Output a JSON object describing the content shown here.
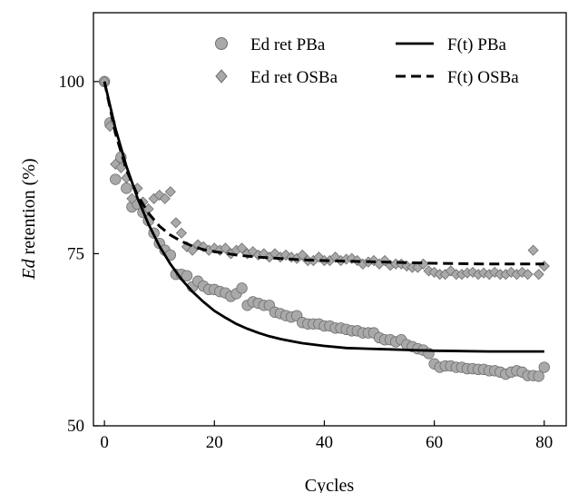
{
  "chart_data": {
    "type": "scatter",
    "title": "",
    "xlabel": "Cycles",
    "ylabel_italic": "Ed",
    "ylabel_rest": " retention (%)",
    "xlim": [
      -2,
      84
    ],
    "ylim": [
      50,
      110
    ],
    "xticks": [
      0,
      20,
      40,
      60,
      80
    ],
    "yticks": [
      50,
      75,
      100
    ],
    "grid": false,
    "legend_position": "top-right",
    "colors": {
      "pba_marker": "#a9a9a9",
      "osba_marker": "#a9a9a9",
      "marker_stroke": "#6e6e6e",
      "fit_line": "#000000"
    },
    "series": [
      {
        "name": "Ed ret PBa",
        "kind": "scatter",
        "marker": "circle",
        "points": [
          [
            0,
            100
          ],
          [
            1,
            94
          ],
          [
            2,
            85.8
          ],
          [
            3,
            89
          ],
          [
            4,
            84.5
          ],
          [
            5,
            81.8
          ],
          [
            6,
            82.2
          ],
          [
            7,
            81
          ],
          [
            8,
            79.8
          ],
          [
            9,
            78
          ],
          [
            10,
            76.5
          ],
          [
            11,
            75.5
          ],
          [
            12,
            74.8
          ],
          [
            13,
            72
          ],
          [
            14,
            72
          ],
          [
            15,
            71.8
          ],
          [
            16,
            70.2
          ],
          [
            17,
            71
          ],
          [
            18,
            70.3
          ],
          [
            19,
            69.8
          ],
          [
            20,
            69.8
          ],
          [
            21,
            69.5
          ],
          [
            22,
            69.3
          ],
          [
            23,
            68.8
          ],
          [
            24,
            69.2
          ],
          [
            25,
            70
          ],
          [
            26,
            67.5
          ],
          [
            27,
            68
          ],
          [
            28,
            67.8
          ],
          [
            29,
            67.5
          ],
          [
            30,
            67.5
          ],
          [
            31,
            66.5
          ],
          [
            32,
            66.3
          ],
          [
            33,
            66
          ],
          [
            34,
            65.8
          ],
          [
            35,
            66
          ],
          [
            36,
            65
          ],
          [
            37,
            64.8
          ],
          [
            38,
            64.8
          ],
          [
            39,
            64.8
          ],
          [
            40,
            64.5
          ],
          [
            41,
            64.5
          ],
          [
            42,
            64.2
          ],
          [
            43,
            64.2
          ],
          [
            44,
            64
          ],
          [
            45,
            63.8
          ],
          [
            46,
            63.8
          ],
          [
            47,
            63.5
          ],
          [
            48,
            63.5
          ],
          [
            49,
            63.5
          ],
          [
            50,
            62.8
          ],
          [
            51,
            62.5
          ],
          [
            52,
            62.5
          ],
          [
            53,
            62.2
          ],
          [
            54,
            62.5
          ],
          [
            55,
            61.8
          ],
          [
            56,
            61.5
          ],
          [
            57,
            61.2
          ],
          [
            58,
            61
          ],
          [
            59,
            60.5
          ],
          [
            60,
            59
          ],
          [
            61,
            58.5
          ],
          [
            62,
            58.7
          ],
          [
            63,
            58.7
          ],
          [
            64,
            58.5
          ],
          [
            65,
            58.5
          ],
          [
            66,
            58.3
          ],
          [
            67,
            58.3
          ],
          [
            68,
            58.2
          ],
          [
            69,
            58.2
          ],
          [
            70,
            58
          ],
          [
            71,
            58
          ],
          [
            72,
            57.8
          ],
          [
            73,
            57.5
          ],
          [
            74,
            57.8
          ],
          [
            75,
            58
          ],
          [
            76,
            57.8
          ],
          [
            77,
            57.3
          ],
          [
            78,
            57.3
          ],
          [
            79,
            57.2
          ],
          [
            80,
            58.5
          ]
        ]
      },
      {
        "name": "Ed ret OSBa",
        "kind": "scatter",
        "marker": "diamond",
        "points": [
          [
            0,
            100
          ],
          [
            1,
            93.5
          ],
          [
            2,
            88
          ],
          [
            3,
            87.5
          ],
          [
            4,
            86
          ],
          [
            5,
            83
          ],
          [
            6,
            84.5
          ],
          [
            7,
            82.5
          ],
          [
            8,
            81.5
          ],
          [
            9,
            83
          ],
          [
            10,
            83.5
          ],
          [
            11,
            83
          ],
          [
            12,
            84
          ],
          [
            13,
            79.5
          ],
          [
            14,
            78
          ],
          [
            15,
            76
          ],
          [
            16,
            75.5
          ],
          [
            17,
            76.3
          ],
          [
            18,
            76
          ],
          [
            19,
            75.5
          ],
          [
            20,
            75.8
          ],
          [
            21,
            75.5
          ],
          [
            22,
            75.8
          ],
          [
            23,
            75
          ],
          [
            24,
            75.5
          ],
          [
            25,
            75.8
          ],
          [
            26,
            75
          ],
          [
            27,
            75.3
          ],
          [
            28,
            74.8
          ],
          [
            29,
            75
          ],
          [
            30,
            74.5
          ],
          [
            31,
            75
          ],
          [
            32,
            74.5
          ],
          [
            33,
            74.8
          ],
          [
            34,
            74.5
          ],
          [
            35,
            74.3
          ],
          [
            36,
            74.8
          ],
          [
            37,
            74
          ],
          [
            38,
            74
          ],
          [
            39,
            74.5
          ],
          [
            40,
            74
          ],
          [
            41,
            74
          ],
          [
            42,
            74.5
          ],
          [
            43,
            74
          ],
          [
            44,
            74.2
          ],
          [
            45,
            74.3
          ],
          [
            46,
            74
          ],
          [
            47,
            73.5
          ],
          [
            48,
            73.8
          ],
          [
            49,
            74
          ],
          [
            50,
            73.5
          ],
          [
            51,
            74
          ],
          [
            52,
            73.3
          ],
          [
            53,
            73.5
          ],
          [
            54,
            73.5
          ],
          [
            55,
            73.2
          ],
          [
            56,
            73
          ],
          [
            57,
            73
          ],
          [
            58,
            73.5
          ],
          [
            59,
            72.5
          ],
          [
            60,
            72.3
          ],
          [
            61,
            72
          ],
          [
            62,
            72
          ],
          [
            63,
            72.5
          ],
          [
            64,
            72
          ],
          [
            65,
            72
          ],
          [
            66,
            72.2
          ],
          [
            67,
            72.3
          ],
          [
            68,
            72
          ],
          [
            69,
            72.2
          ],
          [
            70,
            72
          ],
          [
            71,
            72.3
          ],
          [
            72,
            72
          ],
          [
            73,
            72
          ],
          [
            74,
            72.3
          ],
          [
            75,
            72
          ],
          [
            76,
            72.3
          ],
          [
            77,
            72
          ],
          [
            78,
            75.5
          ],
          [
            79,
            72
          ],
          [
            80,
            73.2
          ]
        ]
      },
      {
        "name": "F(t) PBa",
        "kind": "line",
        "dash": "solid",
        "points": [
          [
            0,
            100
          ],
          [
            2,
            93.2
          ],
          [
            4,
            87.7
          ],
          [
            6,
            83.1
          ],
          [
            8,
            79.3
          ],
          [
            10,
            76.1
          ],
          [
            12,
            73.5
          ],
          [
            14,
            71.3
          ],
          [
            16,
            69.5
          ],
          [
            18,
            68
          ],
          [
            20,
            66.7
          ],
          [
            22,
            65.7
          ],
          [
            24,
            64.8
          ],
          [
            26,
            64.1
          ],
          [
            28,
            63.5
          ],
          [
            30,
            63
          ],
          [
            32,
            62.6
          ],
          [
            34,
            62.3
          ],
          [
            36,
            62
          ],
          [
            38,
            61.8
          ],
          [
            40,
            61.6
          ],
          [
            44,
            61.3
          ],
          [
            48,
            61.2
          ],
          [
            52,
            61.1
          ],
          [
            56,
            61
          ],
          [
            60,
            60.9
          ],
          [
            70,
            60.8
          ],
          [
            80,
            60.8
          ]
        ]
      },
      {
        "name": "F(t) OSBa",
        "kind": "line",
        "dash": "dashed",
        "points": [
          [
            0,
            100
          ],
          [
            2,
            92.5
          ],
          [
            4,
            87.2
          ],
          [
            6,
            83.5
          ],
          [
            8,
            80.9
          ],
          [
            10,
            79
          ],
          [
            12,
            77.7
          ],
          [
            14,
            76.8
          ],
          [
            16,
            76.1
          ],
          [
            18,
            75.6
          ],
          [
            20,
            75.3
          ],
          [
            24,
            74.8
          ],
          [
            28,
            74.5
          ],
          [
            32,
            74.3
          ],
          [
            36,
            74.1
          ],
          [
            40,
            74
          ],
          [
            50,
            73.8
          ],
          [
            60,
            73.6
          ],
          [
            70,
            73.5
          ],
          [
            80,
            73.5
          ]
        ]
      }
    ]
  }
}
